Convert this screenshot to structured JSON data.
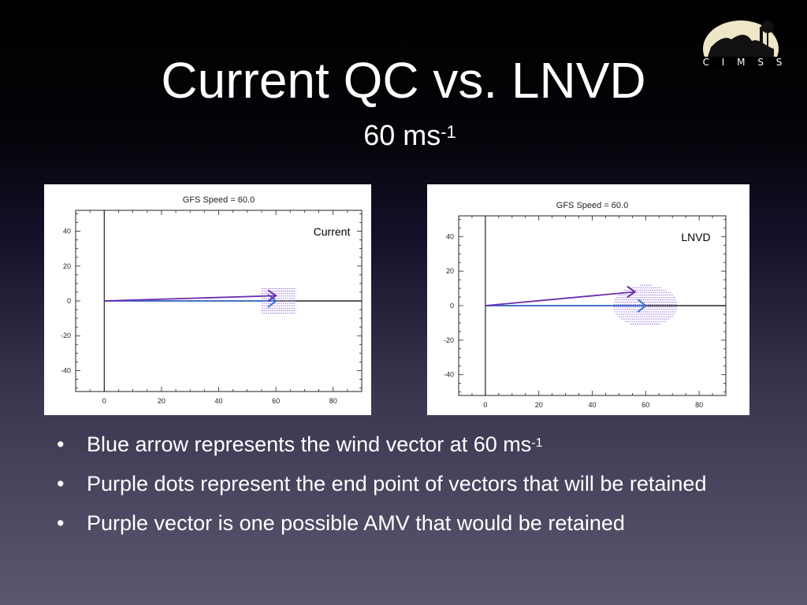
{
  "logo": {
    "text": "C I M S S",
    "icon": "cimss-logo-icon"
  },
  "title": "Current QC vs. LNVD",
  "subtitle": {
    "base": "60 ms",
    "exp": "-1"
  },
  "chart_data": [
    {
      "type": "scatter",
      "title": "GFS Speed =   60.0",
      "annotation": "Current",
      "xlim": [
        -10,
        90
      ],
      "ylim": [
        -52,
        52
      ],
      "x_ticks": [
        "0",
        "20",
        "40",
        "60",
        "80"
      ],
      "y_ticks": [
        "40",
        "20",
        "0",
        "-20",
        "-40"
      ],
      "wind_vector": {
        "x": [
          0,
          60
        ],
        "y": [
          0,
          0
        ],
        "color": "#3a6fd0"
      },
      "amv_vector": {
        "x": [
          0,
          60
        ],
        "y": [
          0,
          3
        ],
        "color": "#6a2bb0"
      },
      "retained_region": {
        "x_range": [
          55,
          67
        ],
        "y_range": [
          -7,
          7
        ],
        "color": "#8a5cd6"
      }
    },
    {
      "type": "scatter",
      "title": "GFS Speed =   60.0",
      "annotation": "LNVD",
      "xlim": [
        -10,
        90
      ],
      "ylim": [
        -52,
        52
      ],
      "x_ticks": [
        "0",
        "20",
        "40",
        "60",
        "80"
      ],
      "y_ticks": [
        "40",
        "20",
        "0",
        "-20",
        "-40"
      ],
      "wind_vector": {
        "x": [
          0,
          60
        ],
        "y": [
          0,
          0
        ],
        "color": "#3a6fd0"
      },
      "amv_vector": {
        "x": [
          0,
          56
        ],
        "y": [
          0,
          8
        ],
        "color": "#6a2bb0"
      },
      "retained_region": {
        "center": [
          60,
          0
        ],
        "radius": 12,
        "color": "#8a5cd6"
      }
    }
  ],
  "bullets": [
    {
      "marker": "•",
      "text": "Blue arrow represents the wind vector at 60 ms",
      "exp": "-1"
    },
    {
      "marker": "•",
      "text": "Purple dots represent the end point of vectors that will be retained",
      "exp": ""
    },
    {
      "marker": "•",
      "text": "Purple vector is one possible AMV that would be retained",
      "exp": ""
    }
  ]
}
